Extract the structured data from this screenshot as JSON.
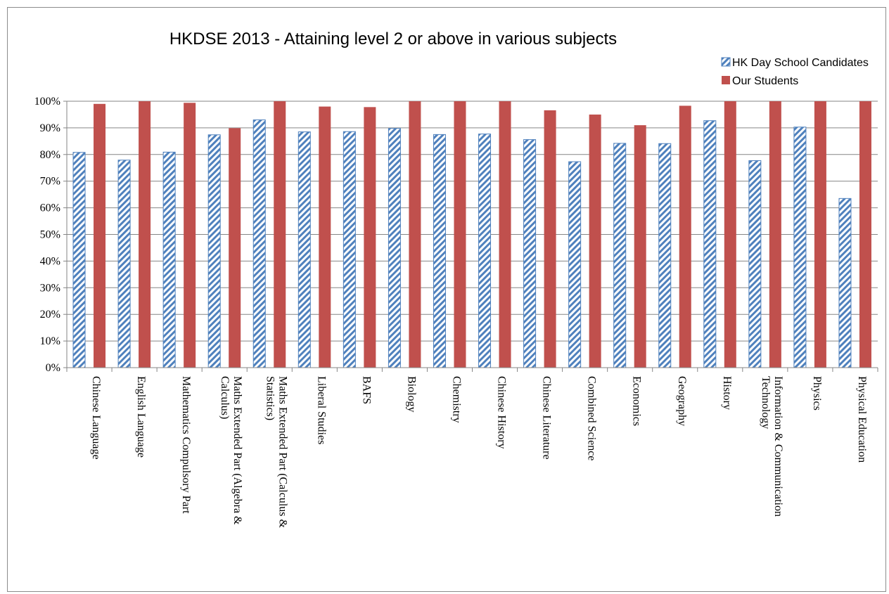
{
  "chart_data": {
    "type": "bar",
    "title": "HKDSE 2013 - Attaining level 2 or above in various subjects",
    "xlabel": "",
    "ylabel": "",
    "ylim": [
      0,
      100
    ],
    "yticks": [
      "0%",
      "10%",
      "20%",
      "30%",
      "40%",
      "50%",
      "60%",
      "70%",
      "80%",
      "90%",
      "100%"
    ],
    "grid": true,
    "legend_position": "top-right",
    "categories": [
      [
        "Chinese Language"
      ],
      [
        "English Language"
      ],
      [
        "Mathematics Compulsory Part"
      ],
      [
        "Maths Extended Part (Algebra &",
        "Calculus)"
      ],
      [
        "Maths Extended Part (Calculus &",
        "Statistics)"
      ],
      [
        "Liberal Studies"
      ],
      [
        "BAFS"
      ],
      [
        "Biology"
      ],
      [
        "Chemistry"
      ],
      [
        "Chinese History"
      ],
      [
        "Chinese Literature"
      ],
      [
        "Combined Science"
      ],
      [
        "Economics"
      ],
      [
        "Geography"
      ],
      [
        "History"
      ],
      [
        "Information & Communication",
        "Technology"
      ],
      [
        "Physics"
      ],
      [
        "Physical Education"
      ]
    ],
    "series": [
      {
        "name": "HK Day School Candidates",
        "color": "#4f81bd",
        "pattern": "diagonal-stripes",
        "values": [
          80.8,
          77.9,
          80.9,
          87.4,
          93.0,
          88.5,
          88.6,
          89.8,
          87.5,
          87.7,
          85.6,
          77.3,
          84.2,
          84.1,
          92.7,
          77.7,
          90.3,
          63.5
        ]
      },
      {
        "name": "Our Students",
        "color": "#c0504d",
        "pattern": "solid",
        "values": [
          99.0,
          100,
          99.4,
          89.9,
          100,
          98.0,
          97.8,
          100,
          100,
          100,
          96.6,
          95.0,
          91.0,
          98.3,
          100,
          100,
          100,
          100
        ]
      }
    ]
  }
}
